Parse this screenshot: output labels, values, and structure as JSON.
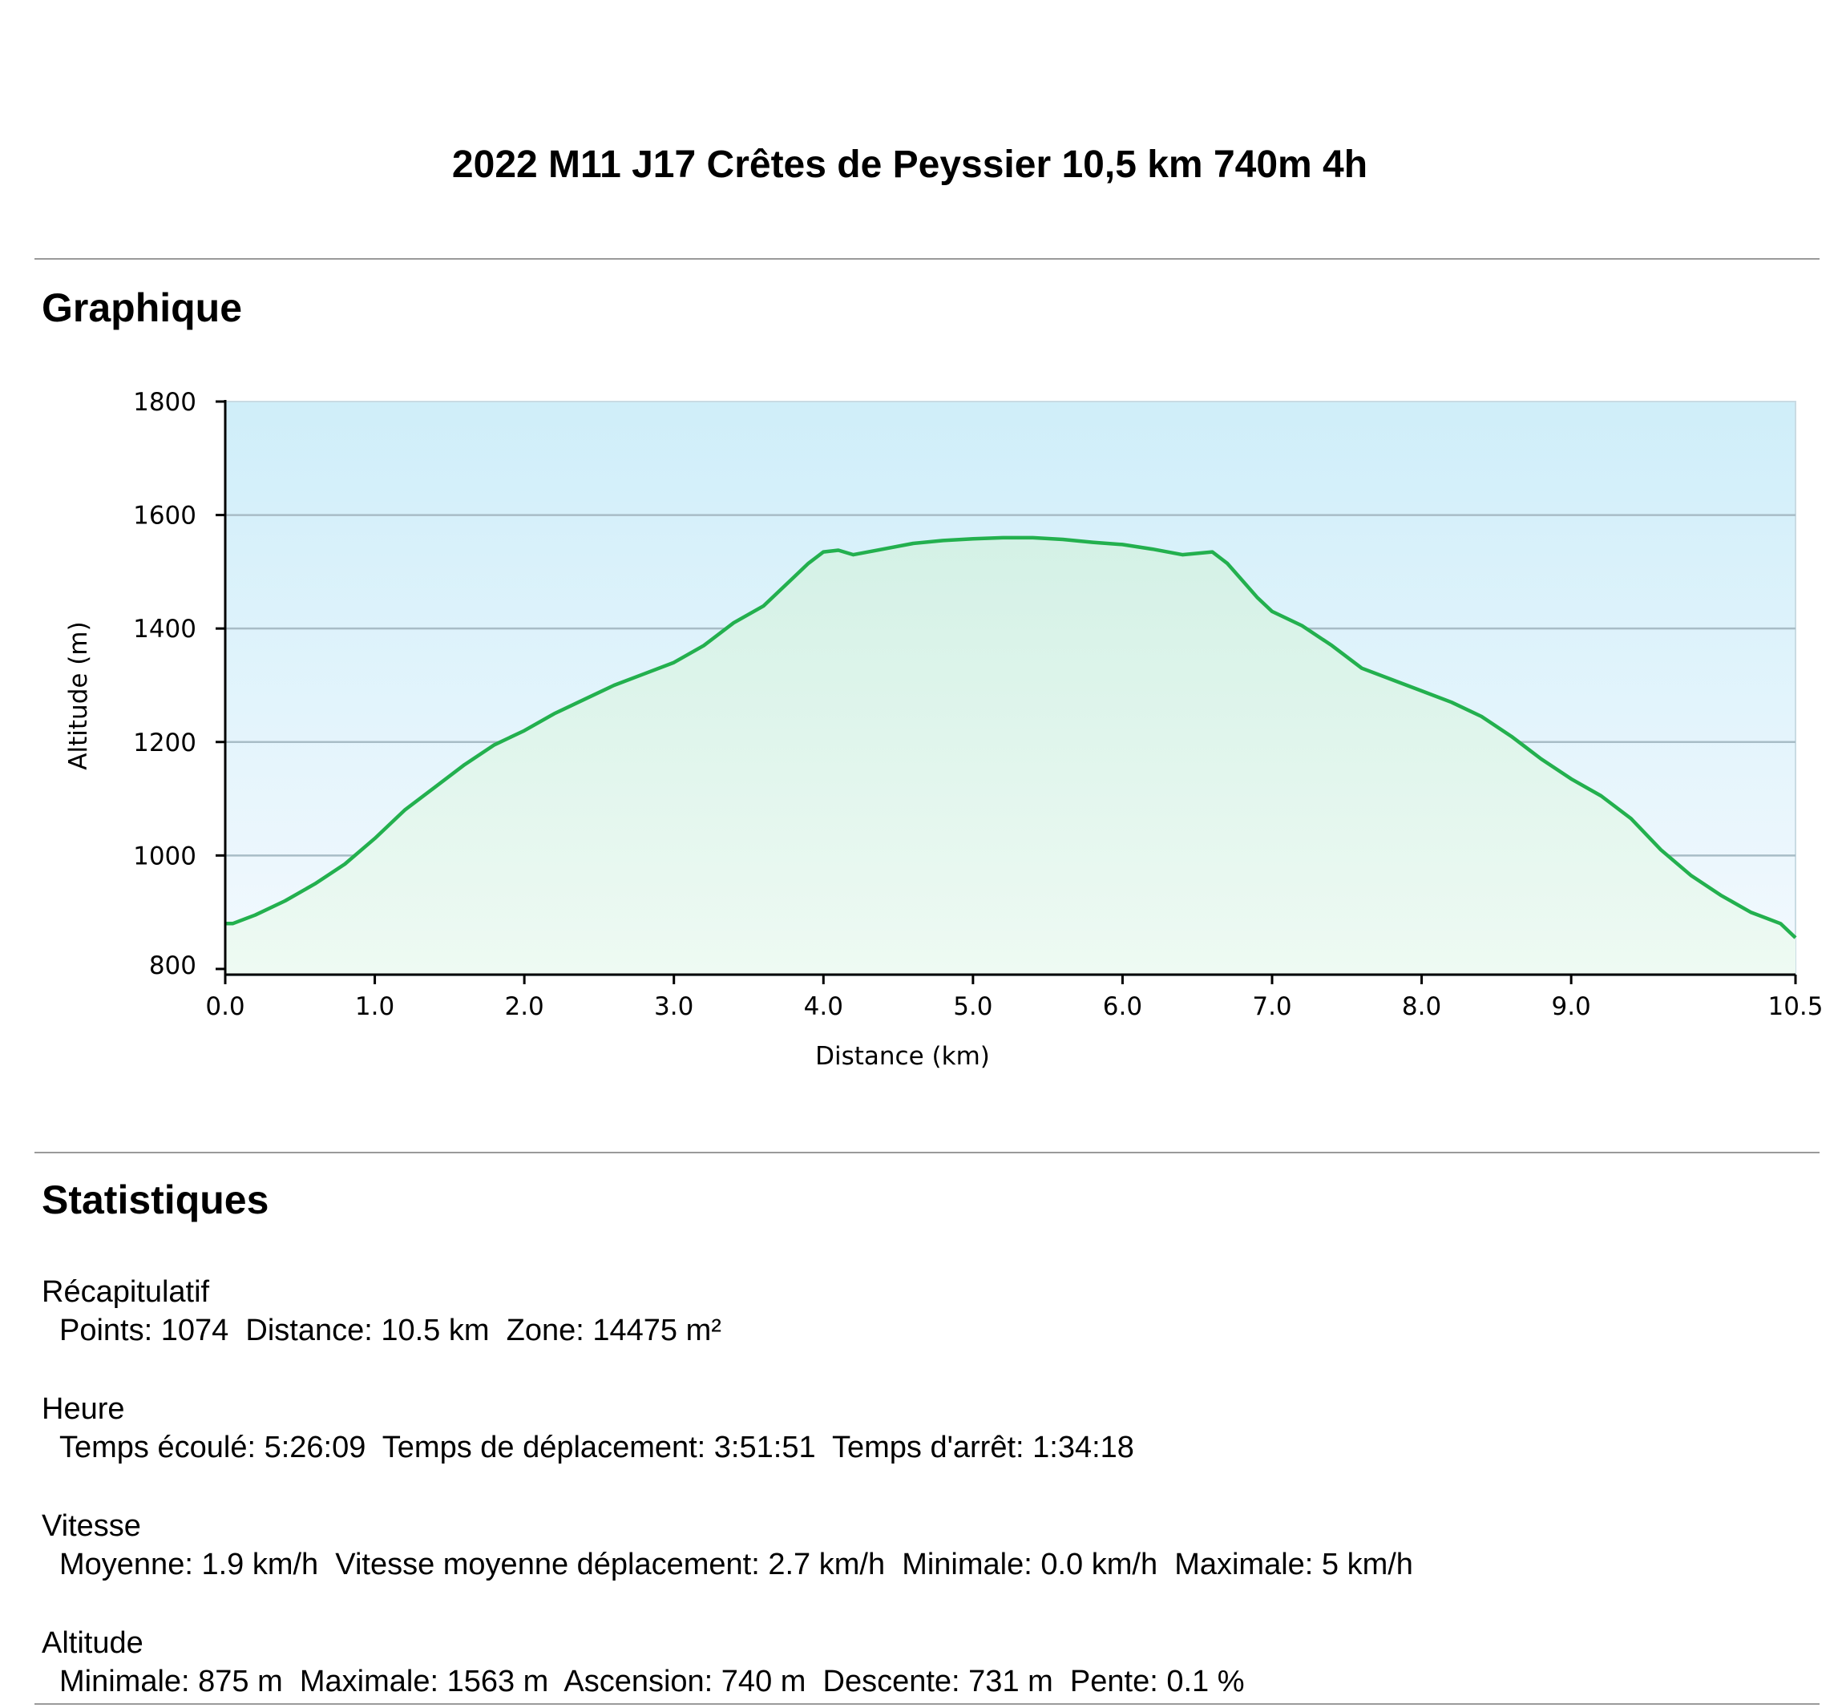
{
  "page": {
    "title": "2022 M11 J17 Crêtes de Peyssier 10,5 km 740m 4h"
  },
  "sections": {
    "chart_heading": "Graphique",
    "stats_heading": "Statistiques"
  },
  "colors": {
    "line": "#23b04e",
    "sky_top": "#cfeef9",
    "fill_top": "#d4f1e6",
    "grid": "#a8bcc6"
  },
  "chart_data": {
    "type": "area",
    "xlabel": "Distance (km)",
    "ylabel": "Altitude (m)",
    "xlim": [
      0,
      10.5
    ],
    "ylim": [
      790,
      1800
    ],
    "x_ticks": [
      "0.0",
      "1.0",
      "2.0",
      "3.0",
      "4.0",
      "5.0",
      "6.0",
      "7.0",
      "8.0",
      "9.0",
      "10.5"
    ],
    "x_tick_values": [
      0,
      1,
      2,
      3,
      4,
      5,
      6,
      7,
      8,
      9,
      10.5
    ],
    "y_ticks": [
      "800",
      "1000",
      "1200",
      "1400",
      "1600",
      "1800"
    ],
    "y_tick_values": [
      800,
      1000,
      1200,
      1400,
      1600,
      1800
    ],
    "grid": true,
    "series": [
      {
        "x": [
          0.0,
          0.05,
          0.2,
          0.4,
          0.6,
          0.8,
          1.0,
          1.2,
          1.4,
          1.6,
          1.8,
          2.0,
          2.2,
          2.4,
          2.6,
          2.8,
          3.0,
          3.2,
          3.4,
          3.6,
          3.8,
          3.9,
          4.0,
          4.1,
          4.2,
          4.4,
          4.6,
          4.8,
          5.0,
          5.2,
          5.4,
          5.6,
          5.8,
          6.0,
          6.2,
          6.4,
          6.6,
          6.7,
          6.8,
          6.9,
          7.0,
          7.2,
          7.4,
          7.6,
          7.8,
          8.0,
          8.2,
          8.4,
          8.6,
          8.8,
          9.0,
          9.2,
          9.4,
          9.6,
          9.8,
          10.0,
          10.2,
          10.4,
          10.5
        ],
        "y": [
          880,
          880,
          895,
          920,
          950,
          985,
          1030,
          1080,
          1120,
          1160,
          1195,
          1220,
          1250,
          1275,
          1300,
          1320,
          1340,
          1370,
          1410,
          1440,
          1490,
          1515,
          1535,
          1538,
          1530,
          1540,
          1550,
          1555,
          1558,
          1560,
          1560,
          1557,
          1552,
          1548,
          1540,
          1530,
          1535,
          1515,
          1485,
          1455,
          1430,
          1405,
          1370,
          1330,
          1310,
          1290,
          1270,
          1245,
          1210,
          1170,
          1135,
          1105,
          1065,
          1010,
          965,
          930,
          900,
          880,
          855
        ]
      }
    ]
  },
  "stats": {
    "groups": [
      {
        "title": "Récapitulatif",
        "line": "Points: 1074  Distance: 10.5 km  Zone: 14475 m²"
      },
      {
        "title": "Heure",
        "line": "Temps écoulé: 5:26:09  Temps de déplacement: 3:51:51  Temps d'arrêt: 1:34:18"
      },
      {
        "title": "Vitesse",
        "line": "Moyenne: 1.9 km/h  Vitesse moyenne déplacement: 2.7 km/h  Minimale: 0.0 km/h  Maximale: 5 km/h"
      },
      {
        "title": "Altitude",
        "line": "Minimale: 875 m  Maximale: 1563 m  Ascension: 740 m  Descente: 731 m  Pente: 0.1 %"
      }
    ]
  }
}
